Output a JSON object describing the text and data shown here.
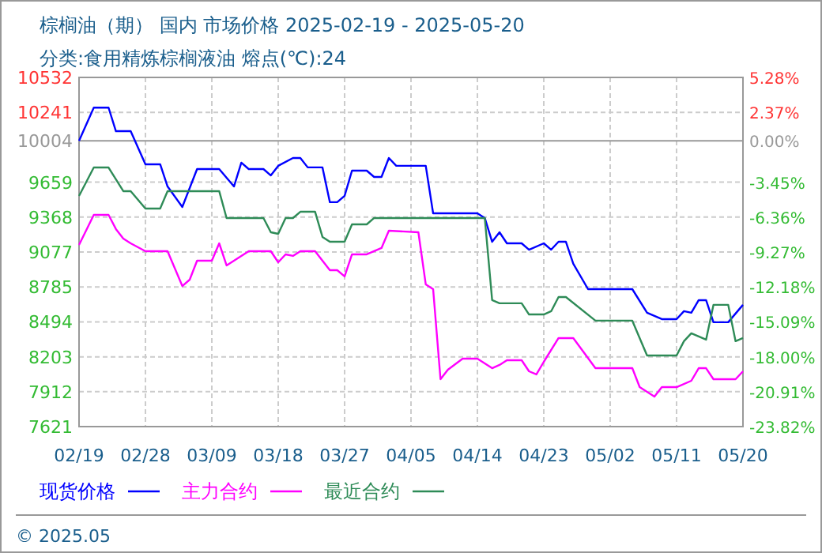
{
  "chart_data": {
    "type": "line",
    "title": "棕榈油（期） 国内 市场价格 2025-02-19 - 2025-05-20",
    "subtitle": "分类:食用精炼棕榈液油 熔点(℃):24",
    "annotations": [
      "© 2025.05"
    ],
    "xlim": [
      "2025-02-19",
      "2025-05-20"
    ],
    "xticks": [
      {
        "value": "2025-02-19",
        "label": "02/19"
      },
      {
        "value": "2025-02-28",
        "label": "02/28"
      },
      {
        "value": "2025-03-09",
        "label": "03/09"
      },
      {
        "value": "2025-03-18",
        "label": "03/18"
      },
      {
        "value": "2025-03-27",
        "label": "03/27"
      },
      {
        "value": "2025-04-05",
        "label": "04/05"
      },
      {
        "value": "2025-04-14",
        "label": "04/14"
      },
      {
        "value": "2025-04-23",
        "label": "04/23"
      },
      {
        "value": "2025-05-02",
        "label": "05/02"
      },
      {
        "value": "2025-05-11",
        "label": "05/11"
      },
      {
        "value": "2025-05-20",
        "label": "05/20"
      }
    ],
    "ylim": [
      7621,
      10532
    ],
    "yticks": [
      7621,
      7912,
      8203,
      8494,
      8785,
      9077,
      9368,
      9659,
      10241,
      10532
    ],
    "y2lim": [
      -23.82,
      5.28
    ],
    "y2ticks": [
      {
        "value": -23.82,
        "label": "-23.82%"
      },
      {
        "value": -20.91,
        "label": "-20.91%"
      },
      {
        "value": -18.0,
        "label": "-18.00%"
      },
      {
        "value": -15.09,
        "label": "-15.09%"
      },
      {
        "value": -12.18,
        "label": "-12.18%"
      },
      {
        "value": -9.27,
        "label": "-9.27%"
      },
      {
        "value": -6.36,
        "label": "-6.36%"
      },
      {
        "value": -3.45,
        "label": "-3.45%"
      },
      {
        "value": 0,
        "label": "0.00%"
      },
      {
        "value": 2.37,
        "label": "2.37%"
      },
      {
        "value": 5.28,
        "label": "5.28%"
      }
    ],
    "ref_lines": [
      {
        "axis": "y",
        "value": 10004,
        "label": "10004",
        "color": "#999999"
      }
    ],
    "grid": true,
    "legend": "bottom",
    "line_style": "solid",
    "marker": "none",
    "series": [
      {
        "name": "现货价格",
        "color": "#0000ff",
        "x": [
          "2025-02-19",
          "2025-02-21",
          "2025-02-23",
          "2025-02-24",
          "2025-02-26",
          "2025-02-28",
          "2025-03-02",
          "2025-03-03",
          "2025-03-05",
          "2025-03-07",
          "2025-03-10",
          "2025-03-12",
          "2025-03-13",
          "2025-03-14",
          "2025-03-16",
          "2025-03-17",
          "2025-03-18",
          "2025-03-20",
          "2025-03-21",
          "2025-03-22",
          "2025-03-24",
          "2025-03-25",
          "2025-03-26",
          "2025-03-27",
          "2025-03-28",
          "2025-03-30",
          "2025-03-31",
          "2025-04-01",
          "2025-04-02",
          "2025-04-03",
          "2025-04-07",
          "2025-04-08",
          "2025-04-14",
          "2025-04-15",
          "2025-04-16",
          "2025-04-17",
          "2025-04-18",
          "2025-04-20",
          "2025-04-21",
          "2025-04-23",
          "2025-04-24",
          "2025-04-25",
          "2025-04-26",
          "2025-04-27",
          "2025-04-29",
          "2025-05-05",
          "2025-05-07",
          "2025-05-09",
          "2025-05-11",
          "2025-05-12",
          "2025-05-13",
          "2025-05-14",
          "2025-05-15",
          "2025-05-16",
          "2025-05-18",
          "2025-05-20"
        ],
        "values": [
          10004,
          10280,
          10280,
          10084,
          10084,
          9808,
          9808,
          9623,
          9452,
          9768,
          9768,
          9623,
          9821,
          9768,
          9768,
          9715,
          9795,
          9860,
          9860,
          9782,
          9782,
          9492,
          9492,
          9545,
          9755,
          9755,
          9702,
          9702,
          9860,
          9795,
          9795,
          9399,
          9399,
          9360,
          9162,
          9241,
          9149,
          9149,
          9096,
          9149,
          9096,
          9162,
          9162,
          8978,
          8767,
          8767,
          8570,
          8517,
          8517,
          8583,
          8570,
          8675,
          8675,
          8491,
          8491,
          8636
        ]
      },
      {
        "name": "主力合约",
        "color": "#ff00ff",
        "x": [
          "2025-02-19",
          "2025-02-21",
          "2025-02-23",
          "2025-02-24",
          "2025-02-25",
          "2025-02-26",
          "2025-02-28",
          "2025-03-03",
          "2025-03-04",
          "2025-03-05",
          "2025-03-06",
          "2025-03-07",
          "2025-03-09",
          "2025-03-10",
          "2025-03-11",
          "2025-03-12",
          "2025-03-14",
          "2025-03-17",
          "2025-03-18",
          "2025-03-19",
          "2025-03-20",
          "2025-03-21",
          "2025-03-23",
          "2025-03-25",
          "2025-03-26",
          "2025-03-27",
          "2025-03-28",
          "2025-03-30",
          "2025-04-01",
          "2025-04-02",
          "2025-04-06",
          "2025-04-07",
          "2025-04-08",
          "2025-04-09",
          "2025-04-10",
          "2025-04-12",
          "2025-04-14",
          "2025-04-16",
          "2025-04-17",
          "2025-04-18",
          "2025-04-20",
          "2025-04-21",
          "2025-04-22",
          "2025-04-23",
          "2025-04-25",
          "2025-04-27",
          "2025-04-30",
          "2025-05-05",
          "2025-05-06",
          "2025-05-08",
          "2025-05-09",
          "2025-05-11",
          "2025-05-13",
          "2025-05-14",
          "2025-05-15",
          "2025-05-16",
          "2025-05-19",
          "2025-05-20"
        ],
        "values": [
          9136,
          9386,
          9386,
          9268,
          9189,
          9149,
          9083,
          9083,
          8938,
          8793,
          8846,
          9004,
          9004,
          9149,
          8965,
          9004,
          9083,
          9083,
          8991,
          9057,
          9044,
          9083,
          9083,
          8925,
          8925,
          8873,
          9057,
          9057,
          9110,
          9254,
          9241,
          8807,
          8767,
          8016,
          8095,
          8187,
          8187,
          8108,
          8135,
          8174,
          8174,
          8082,
          8056,
          8161,
          8359,
          8359,
          8108,
          8108,
          7950,
          7871,
          7950,
          7950,
          8003,
          8108,
          8108,
          8016,
          8016,
          8082
        ]
      },
      {
        "name": "最近合约",
        "color": "#2e8b57",
        "x": [
          "2025-02-19",
          "2025-02-21",
          "2025-02-23",
          "2025-02-25",
          "2025-02-26",
          "2025-02-28",
          "2025-03-02",
          "2025-03-03",
          "2025-03-10",
          "2025-03-11",
          "2025-03-16",
          "2025-03-17",
          "2025-03-18",
          "2025-03-19",
          "2025-03-20",
          "2025-03-21",
          "2025-03-23",
          "2025-03-24",
          "2025-03-25",
          "2025-03-27",
          "2025-03-28",
          "2025-03-30",
          "2025-03-31",
          "2025-04-15",
          "2025-04-16",
          "2025-04-17",
          "2025-04-20",
          "2025-04-21",
          "2025-04-23",
          "2025-04-24",
          "2025-04-25",
          "2025-04-26",
          "2025-04-30",
          "2025-05-05",
          "2025-05-07",
          "2025-05-11",
          "2025-05-12",
          "2025-05-13",
          "2025-05-15",
          "2025-05-16",
          "2025-05-18",
          "2025-05-19",
          "2025-05-20"
        ],
        "values": [
          9544,
          9781,
          9781,
          9584,
          9584,
          9439,
          9439,
          9584,
          9584,
          9360,
          9360,
          9241,
          9228,
          9360,
          9360,
          9412,
          9412,
          9202,
          9162,
          9162,
          9307,
          9307,
          9360,
          9360,
          8675,
          8649,
          8649,
          8556,
          8556,
          8583,
          8701,
          8701,
          8504,
          8504,
          8214,
          8214,
          8333,
          8399,
          8346,
          8636,
          8636,
          8333,
          8359
        ]
      }
    ]
  }
}
